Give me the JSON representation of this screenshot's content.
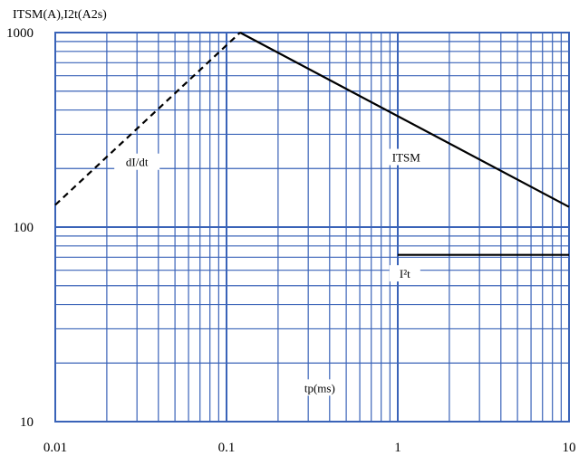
{
  "chart_data": {
    "type": "line",
    "ylabel": "ITSM(A),I2t(A2s)",
    "xlabel": "tp(ms)",
    "x_scale": "log",
    "y_scale": "log",
    "xlim": [
      0.01,
      10
    ],
    "ylim": [
      10,
      1000
    ],
    "grid": true,
    "x_ticks": [
      "0.01",
      "0.1",
      "1",
      "10"
    ],
    "y_ticks": [
      "10",
      "100",
      "1000"
    ],
    "grid_color": "#3a63b8",
    "series": [
      {
        "name": "dI/dt",
        "style": "dashed",
        "color": "#000000",
        "x": [
          0.01,
          0.12
        ],
        "y": [
          130,
          1000
        ]
      },
      {
        "name": "ITSM",
        "style": "solid",
        "color": "#000000",
        "x": [
          0.12,
          10
        ],
        "y": [
          1000,
          127
        ]
      },
      {
        "name": "I²t",
        "style": "solid",
        "color": "#000000",
        "x": [
          1,
          10
        ],
        "y": [
          72,
          72
        ]
      }
    ],
    "annotations": [
      {
        "text": "dI/dt",
        "x": 0.03,
        "y": 210
      },
      {
        "text": "ITSM",
        "x": 1.12,
        "y": 222
      },
      {
        "text": "I²t",
        "x": 1.1,
        "y": 56
      }
    ]
  }
}
